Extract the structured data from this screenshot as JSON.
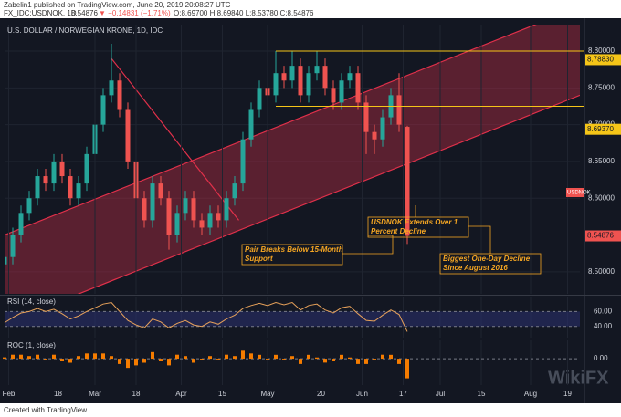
{
  "header": {
    "published": "Zabelin1 published on TradingView.com, June 20, 2019 20:08:27 UTC",
    "symbol": "FX_IDC:USDNOK, 1D",
    "last": "8.54876",
    "change": "▼ −0.14831 (−1.71%)",
    "ohlc": "O:8.69700 H:8.69840 L:8.53780 C:8.54876",
    "footer": "Created with TradingView",
    "watermark": "WikiFX"
  },
  "chart_data": [
    {
      "type": "candlestick",
      "title": "U.S. DOLLAR / NORWEGIAN KRONE, 1D, IDC",
      "up_color": "#26a69a",
      "down_color": "#ef5350",
      "x": [
        0,
        2,
        4,
        6,
        8,
        10,
        12,
        14,
        16,
        18,
        20,
        22,
        24,
        26,
        28,
        30,
        32,
        34,
        36,
        38,
        40,
        42,
        44,
        46,
        48,
        50,
        52,
        54,
        56,
        58,
        60,
        62,
        64,
        66,
        68,
        70,
        72,
        74,
        76,
        78,
        80,
        82,
        84,
        86,
        88,
        90,
        92,
        94,
        96,
        98
      ],
      "open": [
        8.51,
        8.52,
        8.55,
        8.58,
        8.6,
        8.63,
        8.62,
        8.65,
        8.63,
        8.6,
        8.62,
        8.66,
        8.7,
        8.74,
        8.76,
        8.72,
        8.65,
        8.6,
        8.57,
        8.62,
        8.6,
        8.55,
        8.58,
        8.6,
        8.57,
        8.56,
        8.58,
        8.57,
        8.6,
        8.62,
        8.68,
        8.72,
        8.75,
        8.74,
        8.77,
        8.76,
        8.78,
        8.74,
        8.77,
        8.78,
        8.75,
        8.73,
        8.76,
        8.77,
        8.73,
        8.69,
        8.68,
        8.71,
        8.74,
        8.697
      ],
      "high": [
        8.53,
        8.56,
        8.59,
        8.61,
        8.64,
        8.64,
        8.66,
        8.66,
        8.64,
        8.63,
        8.67,
        8.71,
        8.75,
        8.81,
        8.77,
        8.73,
        8.66,
        8.61,
        8.63,
        8.63,
        8.61,
        8.59,
        8.61,
        8.61,
        8.58,
        8.59,
        8.59,
        8.61,
        8.63,
        8.69,
        8.73,
        8.76,
        8.8,
        8.8,
        8.78,
        8.8,
        8.79,
        8.78,
        8.8,
        8.79,
        8.76,
        8.77,
        8.78,
        8.78,
        8.74,
        8.7,
        8.72,
        8.75,
        8.77,
        8.6984
      ],
      "low": [
        8.5,
        8.51,
        8.54,
        8.57,
        8.59,
        8.61,
        8.61,
        8.62,
        8.59,
        8.59,
        8.61,
        8.65,
        8.69,
        8.73,
        8.71,
        8.64,
        8.59,
        8.56,
        8.56,
        8.59,
        8.53,
        8.54,
        8.57,
        8.56,
        8.55,
        8.55,
        8.56,
        8.56,
        8.59,
        8.61,
        8.67,
        8.71,
        8.73,
        8.73,
        8.75,
        8.75,
        8.73,
        8.73,
        8.76,
        8.74,
        8.72,
        8.72,
        8.75,
        8.72,
        8.66,
        8.66,
        8.67,
        8.7,
        8.69,
        8.5378
      ],
      "close": [
        8.52,
        8.55,
        8.58,
        8.6,
        8.63,
        8.62,
        8.65,
        8.63,
        8.6,
        8.62,
        8.66,
        8.7,
        8.74,
        8.76,
        8.72,
        8.65,
        8.6,
        8.57,
        8.62,
        8.6,
        8.55,
        8.58,
        8.6,
        8.57,
        8.56,
        8.58,
        8.57,
        8.6,
        8.62,
        8.68,
        8.72,
        8.75,
        8.74,
        8.77,
        8.76,
        8.78,
        8.74,
        8.77,
        8.78,
        8.75,
        8.73,
        8.76,
        8.77,
        8.73,
        8.69,
        8.68,
        8.71,
        8.74,
        8.7,
        8.54876
      ],
      "xlim": [
        0,
        140
      ],
      "xticks": [
        {
          "value": 1,
          "label": "Feb"
        },
        {
          "value": 13,
          "label": "18"
        },
        {
          "value": 22,
          "label": "Mar"
        },
        {
          "value": 32,
          "label": "18"
        },
        {
          "value": 43,
          "label": "Apr"
        },
        {
          "value": 53,
          "label": "15"
        },
        {
          "value": 64,
          "label": "May"
        },
        {
          "value": 77,
          "label": "20"
        },
        {
          "value": 87,
          "label": "Jun"
        },
        {
          "value": 97,
          "label": "17"
        },
        {
          "value": 106,
          "label": "Jul"
        },
        {
          "value": 116,
          "label": "15"
        },
        {
          "value": 128,
          "label": "Aug"
        },
        {
          "value": 137,
          "label": "19"
        }
      ],
      "ylim": [
        8.47,
        8.836
      ],
      "yticks": [
        {
          "value": 8.5,
          "label": "8.50000"
        },
        {
          "value": 8.55,
          "label": "8.55000"
        },
        {
          "value": 8.6,
          "label": "8.60000"
        },
        {
          "value": 8.65,
          "label": "8.65000"
        },
        {
          "value": 8.7,
          "label": "8.70000"
        },
        {
          "value": 8.75,
          "label": "8.75000"
        },
        {
          "value": 8.8,
          "label": "8.80000"
        }
      ],
      "price_labels": [
        {
          "value": 8.7883,
          "label": "8.78830",
          "color": "#f5c518"
        },
        {
          "value": 8.6937,
          "label": "8.69370",
          "color": "#f5c518"
        },
        {
          "value": 8.54876,
          "label": "8.54876",
          "color": "#ef5350"
        }
      ],
      "symbol_tag": "USDNOK",
      "channel": {
        "upper": [
          8.55,
          8.86
        ],
        "lower": [
          8.43,
          8.74
        ],
        "color": "#e0304a"
      },
      "downtrend": {
        "x": [
          26,
          57
        ],
        "y": [
          8.79,
          8.57
        ]
      },
      "levels": {
        "start": 66,
        "values": [
          8.8,
          8.725
        ],
        "color": "#f5c518"
      },
      "annotations": [
        "USDNOK Extends Over 1 Percent Decline",
        "Pair Breaks Below 15-Month Support",
        "Biggest One-Day Decline Since August 2016"
      ]
    },
    {
      "type": "line",
      "title": "RSI (14, close)",
      "color": "#e8a25a",
      "x": [
        0,
        2,
        4,
        6,
        8,
        10,
        12,
        14,
        16,
        18,
        20,
        22,
        24,
        26,
        28,
        30,
        32,
        34,
        36,
        38,
        40,
        42,
        44,
        46,
        48,
        50,
        52,
        54,
        56,
        58,
        60,
        62,
        64,
        66,
        68,
        70,
        72,
        74,
        76,
        78,
        80,
        82,
        84,
        86,
        88,
        90,
        92,
        94,
        96,
        98
      ],
      "values": [
        45,
        52,
        58,
        60,
        64,
        60,
        63,
        57,
        50,
        54,
        60,
        65,
        70,
        72,
        60,
        48,
        42,
        38,
        50,
        46,
        38,
        44,
        48,
        42,
        40,
        46,
        43,
        50,
        55,
        64,
        68,
        71,
        68,
        72,
        69,
        72,
        62,
        68,
        70,
        62,
        58,
        65,
        67,
        57,
        48,
        47,
        55,
        62,
        56,
        33
      ],
      "xlim": [
        0,
        140
      ],
      "ylim": [
        25,
        80
      ],
      "yticks": [
        {
          "value": 40,
          "label": "40.00"
        },
        {
          "value": 60,
          "label": "60.00"
        }
      ]
    },
    {
      "type": "bar",
      "title": "ROC (1, close)",
      "color": "#f57c00",
      "x": [
        0,
        2,
        4,
        6,
        8,
        10,
        12,
        14,
        16,
        18,
        20,
        22,
        24,
        26,
        28,
        30,
        32,
        34,
        36,
        38,
        40,
        42,
        44,
        46,
        48,
        50,
        52,
        54,
        56,
        58,
        60,
        62,
        64,
        66,
        68,
        70,
        72,
        74,
        76,
        78,
        80,
        82,
        84,
        86,
        88,
        90,
        92,
        94,
        96,
        98
      ],
      "values": [
        0.12,
        0.35,
        0.35,
        0.23,
        0.35,
        -0.12,
        0.35,
        -0.23,
        -0.35,
        0.23,
        0.46,
        0.46,
        0.46,
        0.23,
        -0.46,
        -0.8,
        -0.58,
        -0.35,
        0.58,
        -0.23,
        -0.58,
        0.35,
        0.23,
        -0.35,
        -0.12,
        0.23,
        -0.12,
        0.35,
        0.23,
        0.7,
        0.46,
        0.34,
        -0.11,
        0.34,
        -0.11,
        0.23,
        -0.46,
        0.34,
        0.11,
        -0.34,
        -0.23,
        0.34,
        0.11,
        -0.46,
        -0.46,
        -0.12,
        0.35,
        0.34,
        -0.46,
        -1.71
      ],
      "xlim": [
        0,
        140
      ],
      "ylim": [
        -2.3,
        1.6
      ],
      "yticks": [
        {
          "value": 0,
          "label": "0.00"
        }
      ]
    }
  ]
}
